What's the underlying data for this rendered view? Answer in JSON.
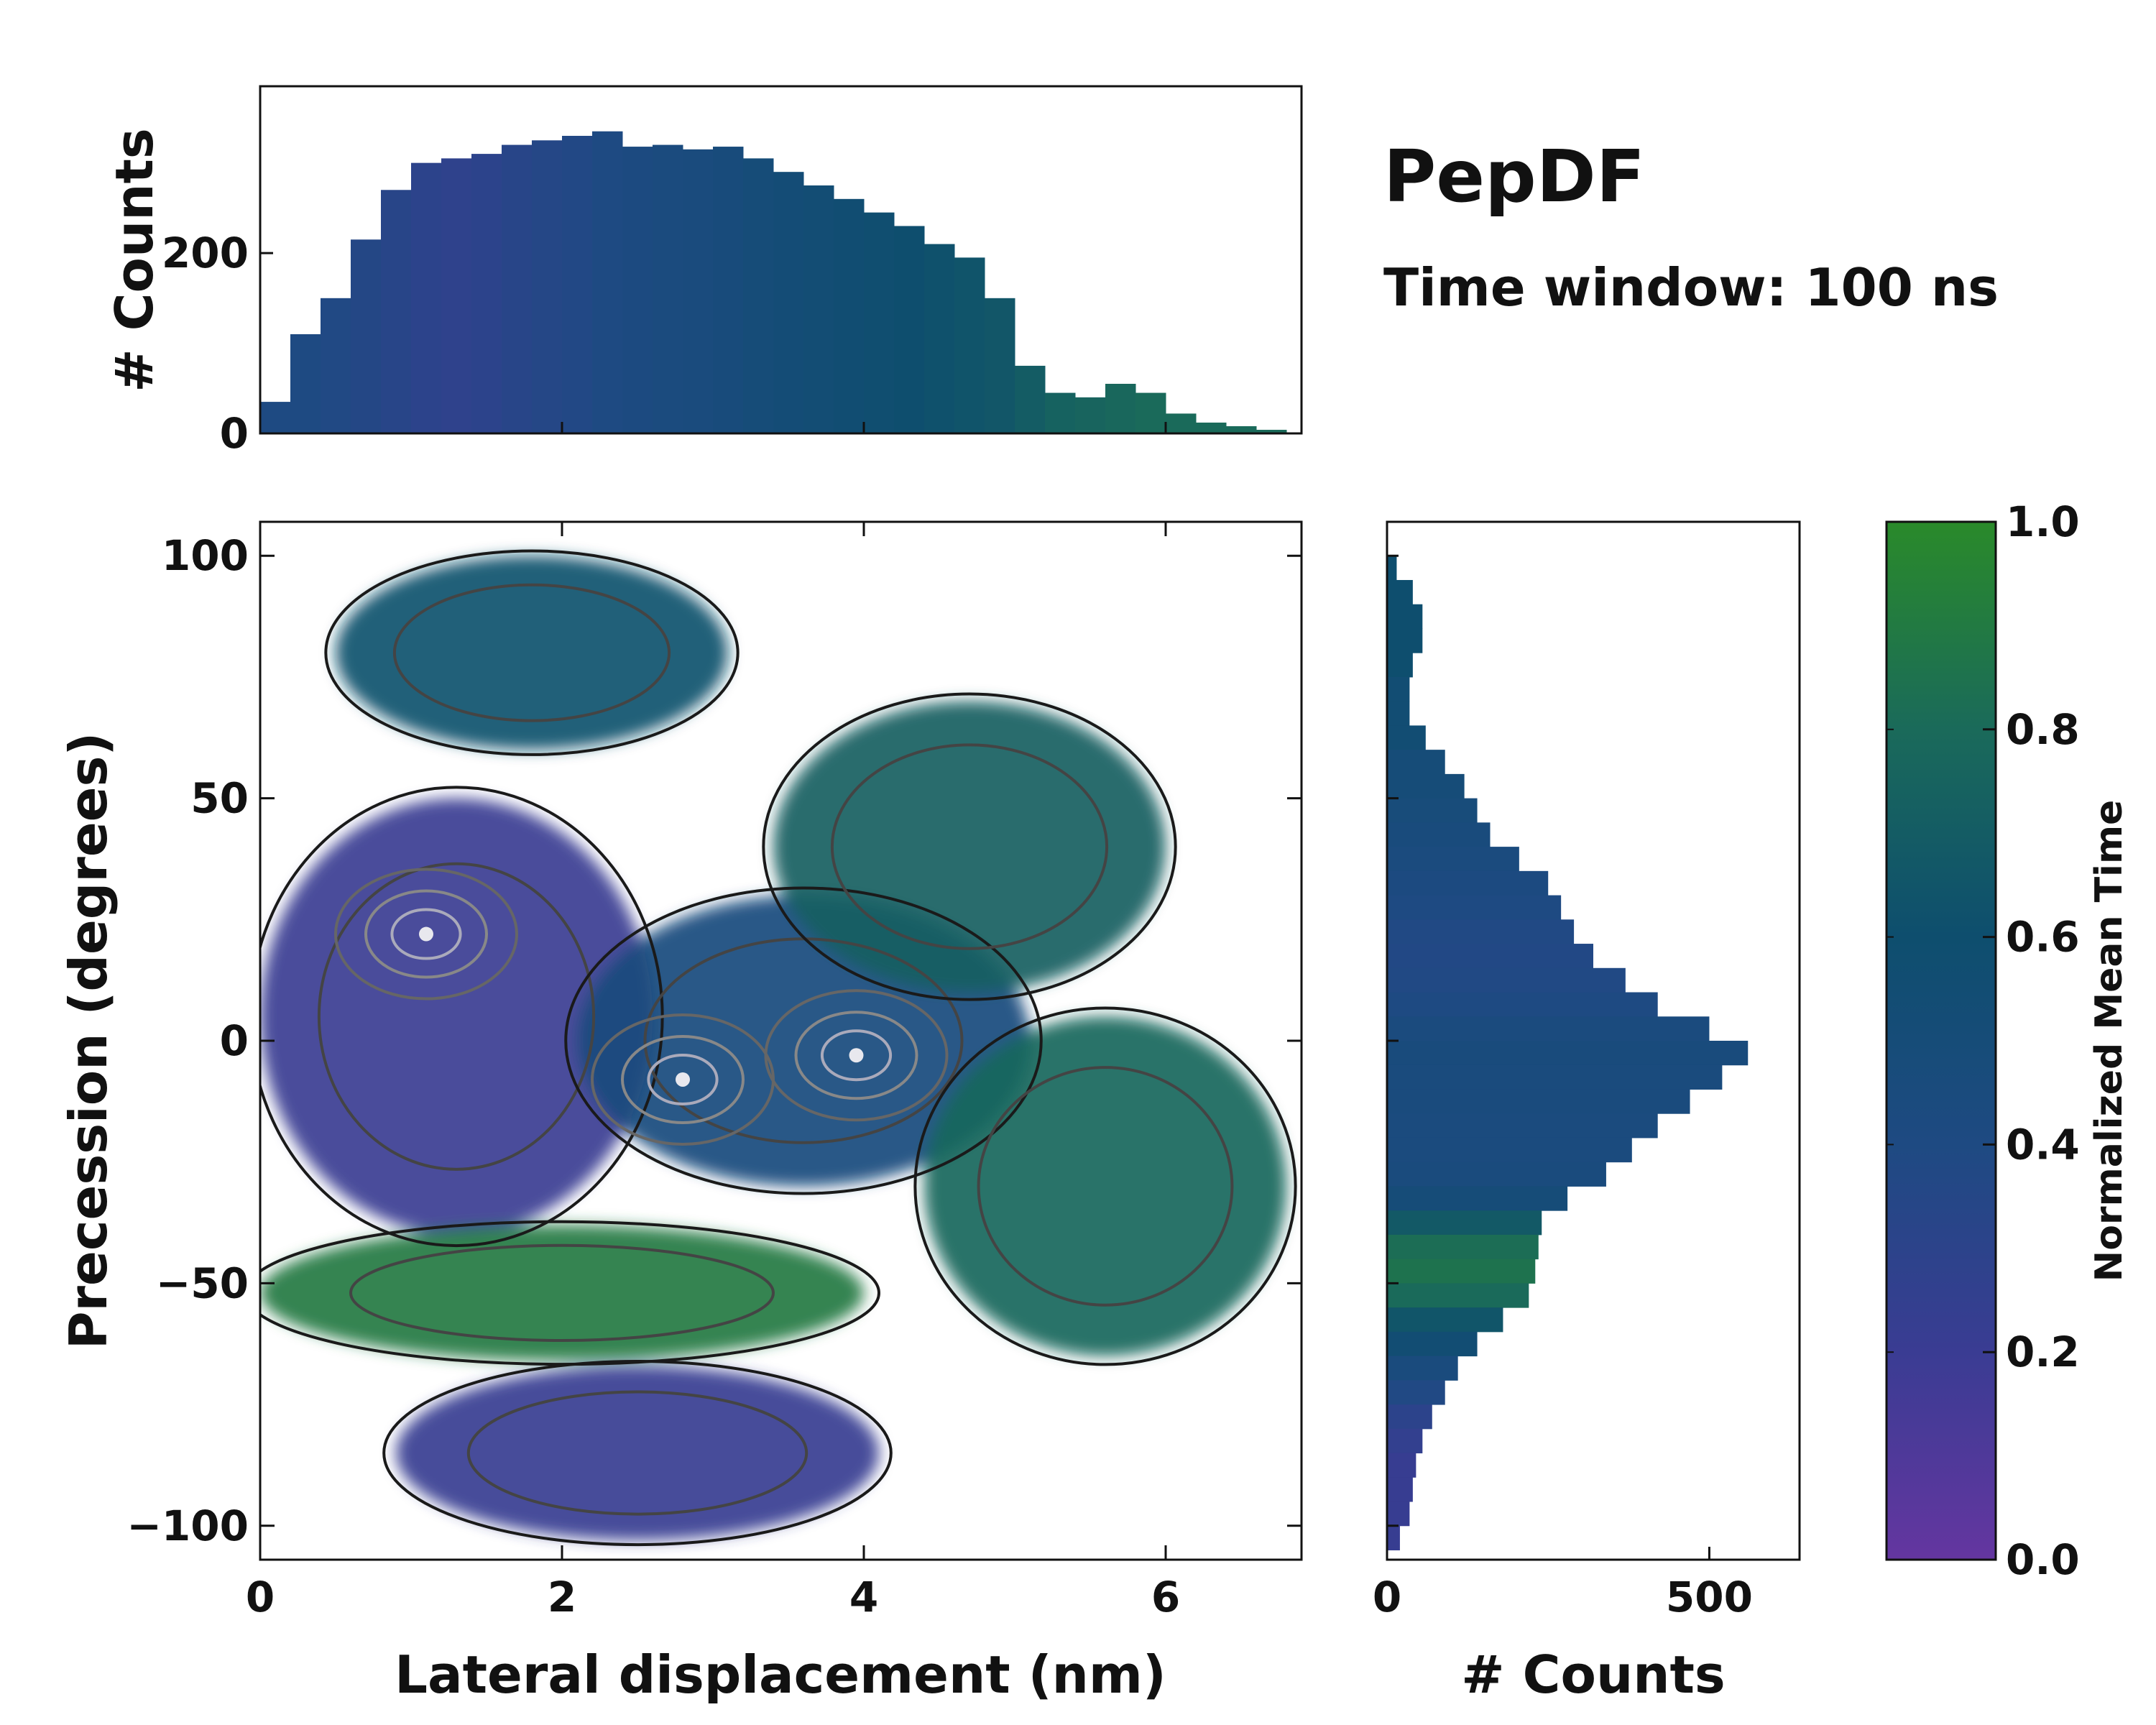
{
  "chart_data": {
    "type": "scatter",
    "title": "PepDF",
    "subtitle": "Time window: 100 ns",
    "main_panel": {
      "kind": "2d-histogram-heatmap-with-contours",
      "xlabel": "Lateral displacement (nm)",
      "ylabel": "Precession (degrees)",
      "xlim": [
        0,
        6.9
      ],
      "ylim": [
        -107,
        107
      ],
      "xticks": [
        0,
        2,
        4,
        6
      ],
      "xtick_labels": [
        "0",
        "2",
        "4",
        "6"
      ],
      "yticks": [
        100,
        50,
        0,
        -50,
        -100
      ],
      "ytick_labels": [
        "100",
        "50",
        "0",
        "−50",
        "−100"
      ],
      "color_by": "Normalized Mean Time",
      "regions": [
        {
          "name": "upper-left green lobe",
          "x_center": 1.8,
          "y_center": 80,
          "x_spread": 1.3,
          "y_spread": 20,
          "color_value": 0.62
        },
        {
          "name": "purple core",
          "x_center": 1.3,
          "y_center": 5,
          "x_spread": 1.3,
          "y_spread": 45,
          "color_value": 0.2
        },
        {
          "name": "central blue core",
          "x_center": 3.6,
          "y_center": 0,
          "x_spread": 1.5,
          "y_spread": 30,
          "color_value": 0.45
        },
        {
          "name": "right green lobe",
          "x_center": 5.6,
          "y_center": -30,
          "x_spread": 1.2,
          "y_spread": 35,
          "color_value": 0.78
        },
        {
          "name": "upper-right green lobe",
          "x_center": 4.7,
          "y_center": 40,
          "x_spread": 1.3,
          "y_spread": 30,
          "color_value": 0.72
        },
        {
          "name": "lower green band",
          "x_center": 2.0,
          "y_center": -52,
          "x_spread": 2.0,
          "y_spread": 14,
          "color_value": 0.9
        },
        {
          "name": "bottom purple lobe",
          "x_center": 2.5,
          "y_center": -85,
          "x_spread": 1.6,
          "y_spread": 18,
          "color_value": 0.22
        }
      ],
      "density_peaks": [
        {
          "x": 3.95,
          "y": -3
        },
        {
          "x": 1.1,
          "y": 22
        },
        {
          "x": 2.8,
          "y": -8
        }
      ]
    },
    "top_histogram": {
      "kind": "bar",
      "ylabel": "# Counts",
      "xlim": [
        0,
        6.9
      ],
      "ylim": [
        0,
        385
      ],
      "yticks": [
        0,
        200
      ],
      "ytick_labels": [
        "0",
        "200"
      ],
      "x_step": 0.2,
      "x": [
        0.1,
        0.3,
        0.5,
        0.7,
        0.9,
        1.1,
        1.3,
        1.5,
        1.7,
        1.9,
        2.1,
        2.3,
        2.5,
        2.7,
        2.9,
        3.1,
        3.3,
        3.5,
        3.7,
        3.9,
        4.1,
        4.3,
        4.5,
        4.7,
        4.9,
        5.1,
        5.3,
        5.5,
        5.7,
        5.9,
        6.1,
        6.3,
        6.5,
        6.7
      ],
      "values": [
        35,
        110,
        150,
        215,
        270,
        300,
        305,
        310,
        320,
        325,
        330,
        335,
        318,
        320,
        315,
        318,
        305,
        290,
        275,
        260,
        245,
        230,
        210,
        195,
        150,
        75,
        45,
        40,
        55,
        45,
        22,
        12,
        8,
        4
      ],
      "color_values": [
        0.4,
        0.4,
        0.38,
        0.36,
        0.33,
        0.3,
        0.28,
        0.3,
        0.33,
        0.35,
        0.37,
        0.4,
        0.42,
        0.44,
        0.45,
        0.47,
        0.5,
        0.52,
        0.54,
        0.56,
        0.58,
        0.6,
        0.62,
        0.64,
        0.66,
        0.7,
        0.74,
        0.76,
        0.78,
        0.8,
        0.8,
        0.8,
        0.8,
        0.8
      ]
    },
    "right_histogram": {
      "kind": "barh",
      "xlabel": "# Counts",
      "xlim": [
        0,
        640
      ],
      "xticks": [
        0,
        500
      ],
      "xtick_labels": [
        "0",
        "500"
      ],
      "y_step": 5,
      "y": [
        97.5,
        92.5,
        87.5,
        82.5,
        77.5,
        72.5,
        67.5,
        62.5,
        57.5,
        52.5,
        47.5,
        42.5,
        37.5,
        32.5,
        27.5,
        22.5,
        17.5,
        12.5,
        7.5,
        2.5,
        -2.5,
        -7.5,
        -12.5,
        -17.5,
        -22.5,
        -27.5,
        -32.5,
        -37.5,
        -42.5,
        -47.5,
        -52.5,
        -57.5,
        -62.5,
        -67.5,
        -72.5,
        -77.5,
        -82.5,
        -87.5,
        -92.5,
        -97.5,
        -102.5
      ],
      "values": [
        15,
        40,
        55,
        55,
        40,
        35,
        35,
        60,
        90,
        120,
        140,
        160,
        205,
        250,
        270,
        290,
        320,
        370,
        420,
        500,
        560,
        520,
        470,
        420,
        380,
        340,
        280,
        240,
        235,
        230,
        220,
        180,
        140,
        110,
        90,
        70,
        55,
        45,
        40,
        35,
        20
      ],
      "color_values": [
        0.6,
        0.6,
        0.6,
        0.6,
        0.6,
        0.55,
        0.55,
        0.55,
        0.5,
        0.5,
        0.48,
        0.46,
        0.44,
        0.42,
        0.4,
        0.38,
        0.37,
        0.38,
        0.4,
        0.44,
        0.46,
        0.45,
        0.45,
        0.44,
        0.44,
        0.45,
        0.5,
        0.68,
        0.82,
        0.85,
        0.8,
        0.65,
        0.55,
        0.45,
        0.38,
        0.3,
        0.25,
        0.22,
        0.22,
        0.22,
        0.22
      ]
    },
    "colorbar": {
      "label": "Normalized Mean Time",
      "lim": [
        0.0,
        1.0
      ],
      "ticks": [
        0.0,
        0.2,
        0.4,
        0.6,
        0.8,
        1.0
      ],
      "tick_labels": [
        "0.0",
        "0.2",
        "0.4",
        "0.6",
        "0.8",
        "1.0"
      ],
      "colormap_stops": [
        "#6436a0",
        "#3a3c93",
        "#1e4a82",
        "#0e4e6e",
        "#1a6a5a",
        "#2a8a2a"
      ]
    }
  }
}
